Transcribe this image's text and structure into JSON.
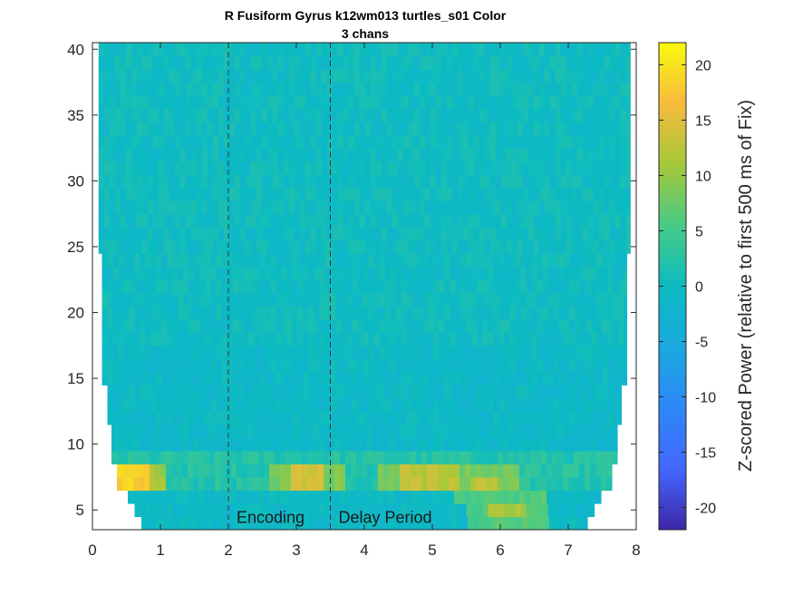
{
  "chart_data": {
    "type": "heatmap",
    "title": "R Fusiform Gyrus k12wm013 turtles_s01 Color",
    "subtitle": "3 chans",
    "xlim": [
      0,
      8
    ],
    "ylim": [
      3.5,
      40.5
    ],
    "x_ticks": [
      "0",
      "1",
      "2",
      "3",
      "4",
      "5",
      "6",
      "7",
      "8"
    ],
    "y_ticks": [
      "5",
      "10",
      "15",
      "20",
      "25",
      "30",
      "35",
      "40"
    ],
    "y_tick_values": [
      5,
      10,
      15,
      20,
      25,
      30,
      35,
      40
    ],
    "colorbar": {
      "label": "Z-scored Power (relative to first 500 ms of Fix)",
      "clim": [
        -22,
        22
      ],
      "ticks": [
        "20",
        "15",
        "10",
        "5",
        "0",
        "-5",
        "-10",
        "-15",
        "-20"
      ],
      "tick_values": [
        20,
        15,
        10,
        5,
        0,
        -5,
        -10,
        -15,
        -20
      ],
      "colormap": "parula"
    },
    "event_lines": [
      {
        "x": 2.0,
        "label": "Encoding"
      },
      {
        "x": 3.5,
        "label": "Delay Period"
      }
    ],
    "grid": false,
    "data_extent_note": "cone of influence: valid data narrows at low frequencies",
    "hotspots": [
      {
        "freq": 7.5,
        "t_start": 0.3,
        "t_end": 0.8,
        "value": 17
      },
      {
        "freq": 7.5,
        "t_start": 2.9,
        "t_end": 3.4,
        "value": 12
      },
      {
        "freq": 7.5,
        "t_start": 4.5,
        "t_end": 5.4,
        "value": 11
      },
      {
        "freq": 7.0,
        "t_start": 5.6,
        "t_end": 6.0,
        "value": 11
      },
      {
        "freq": 5.0,
        "t_start": 5.8,
        "t_end": 6.4,
        "value": 13
      }
    ],
    "baseline_value": 0
  }
}
